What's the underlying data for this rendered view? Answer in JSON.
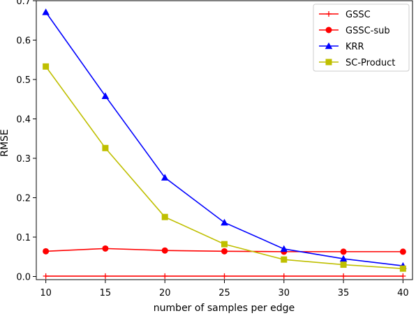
{
  "chart_data": {
    "type": "line",
    "title": "",
    "xlabel": "number of samples per edge",
    "ylabel": "RMSE",
    "x": [
      10,
      15,
      20,
      25,
      30,
      35,
      40
    ],
    "xticks": [
      "10",
      "15",
      "20",
      "25",
      "30",
      "35",
      "40"
    ],
    "yticks": [
      "0.0",
      "0.1",
      "0.2",
      "0.3",
      "0.4",
      "0.5",
      "0.6",
      "0.7"
    ],
    "xlim": [
      9.2,
      40.8
    ],
    "ylim": [
      -0.008,
      0.7
    ],
    "grid": false,
    "legend_position": "top-right",
    "series": [
      {
        "name": "GSSC",
        "color": "#ff0000",
        "marker": "plus",
        "values": [
          0.001,
          0.001,
          0.001,
          0.001,
          0.001,
          0.001,
          0.001
        ]
      },
      {
        "name": "GSSC-sub",
        "color": "#ff0000",
        "marker": "circle",
        "values": [
          0.064,
          0.071,
          0.066,
          0.064,
          0.063,
          0.063,
          0.063
        ]
      },
      {
        "name": "KRR",
        "color": "#0000ff",
        "marker": "triangle",
        "values": [
          0.671,
          0.458,
          0.251,
          0.137,
          0.07,
          0.045,
          0.027
        ]
      },
      {
        "name": "SC-Product",
        "color": "#bfbf00",
        "marker": "square",
        "values": [
          0.533,
          0.326,
          0.151,
          0.082,
          0.043,
          0.03,
          0.02
        ]
      }
    ]
  }
}
